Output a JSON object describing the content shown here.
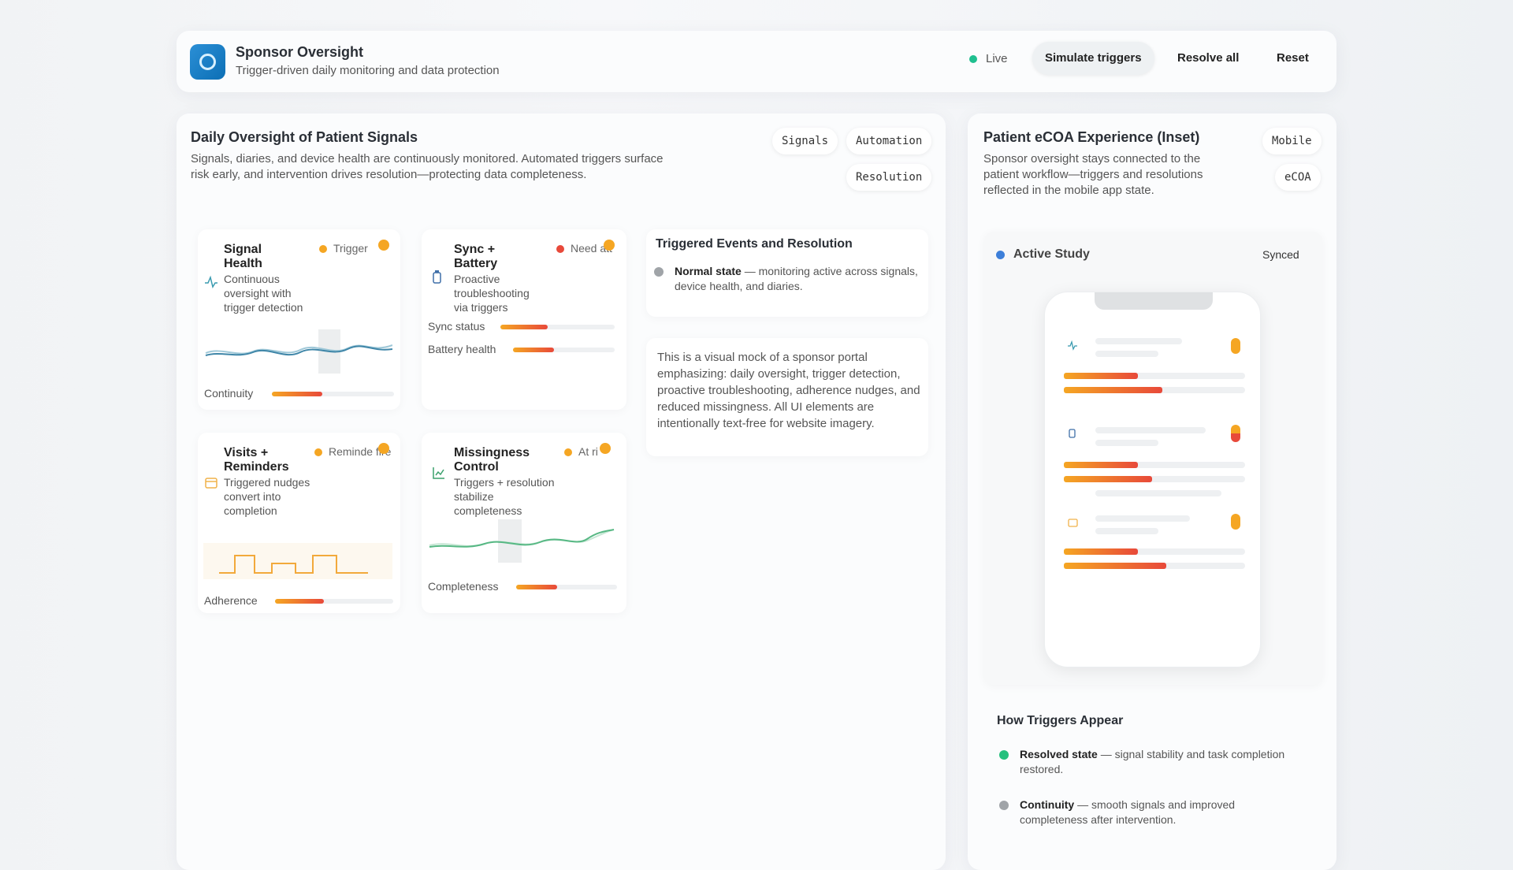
{
  "header": {
    "title": "Sponsor Oversight",
    "subtitle": "Trigger-driven daily monitoring and data protection",
    "status": "Live",
    "buttons": [
      "Simulate triggers",
      "Resolve all",
      "Reset"
    ]
  },
  "main": {
    "title": "Daily Oversight of Patient Signals",
    "description": "Signals, diaries, and device health are continuously monitored. Automated triggers surface risk early, and intervention drives resolution—protecting data completeness.",
    "tags": [
      "Signals",
      "Automation",
      "Resolution"
    ],
    "cards": [
      {
        "title": "Signal Health",
        "badge": "Trigger",
        "description": "Continuous oversight with trigger detection",
        "metrics": [
          "Continuity"
        ]
      },
      {
        "title": "Sync + Battery",
        "badge": "Need att",
        "description": "Proactive troubleshooting via triggers",
        "metrics": [
          "Sync status",
          "Battery health"
        ]
      },
      {
        "title": "Visits + Reminders",
        "badge": "Reminde fire",
        "description": "Triggered nudges convert into completion",
        "metrics": [
          "Adherence"
        ]
      },
      {
        "title": "Missingness Control",
        "badge": "At ri",
        "description": "Triggers + resolution stabilize completeness",
        "metrics": [
          "Completeness"
        ]
      }
    ],
    "events": {
      "title": "Triggered Events and Resolution",
      "items": [
        {
          "label": "Normal state",
          "text": "— monitoring active across signals, device health, and diaries."
        }
      ]
    },
    "note": "This is a visual mock of a sponsor portal emphasizing: daily oversight, trigger detection, proactive troubleshooting, adherence nudges, and reduced missingness. All UI elements are intentionally text-free for website imagery."
  },
  "inset": {
    "title": "Patient eCOA Experience (Inset)",
    "description": "Sponsor oversight stays connected to the patient workflow—triggers and resolutions reflected in the mobile app state.",
    "tags": [
      "Mobile",
      "eCOA"
    ],
    "study": "Active Study",
    "sync": "Synced",
    "triggers": {
      "title": "How Triggers Appear",
      "items": [
        {
          "label": "Resolved state",
          "text": "— signal stability and task completion restored."
        },
        {
          "label": "Continuity",
          "text": "— smooth signals and improved completeness after intervention."
        }
      ]
    }
  }
}
